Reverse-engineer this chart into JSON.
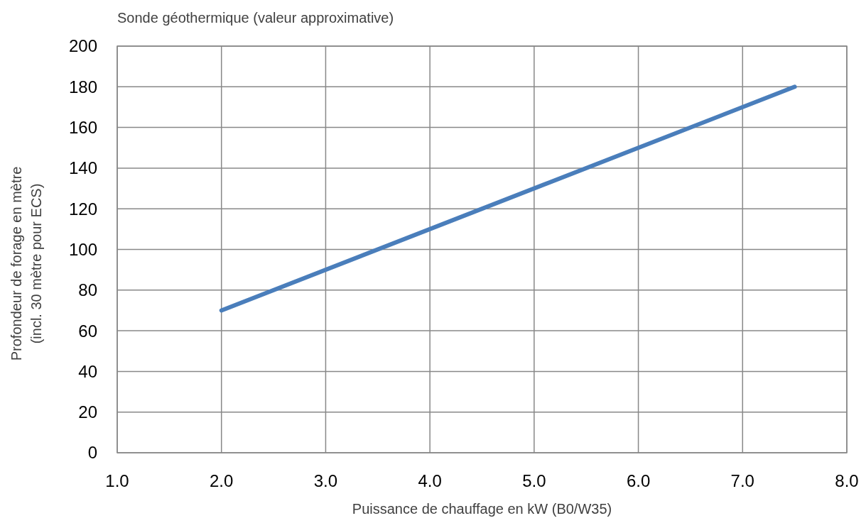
{
  "chart_data": {
    "type": "line",
    "title": "Sonde géothermique (valeur approximative)",
    "xlabel": "Puissance de chauffage en kW (B0/W35)",
    "ylabel": "Profondeur de forage en mètre\n(incl. 30 mètre pour ECS)",
    "x": [
      2.0,
      7.5
    ],
    "series": [
      {
        "color": "#4a7ebb",
        "values": [
          70,
          180
        ]
      }
    ],
    "xlim": [
      1,
      8
    ],
    "xticks": [
      {
        "value": 1,
        "label": "1.0"
      },
      {
        "value": 2,
        "label": "2.0"
      },
      {
        "value": 3,
        "label": "3.0"
      },
      {
        "value": 4,
        "label": "4.0"
      },
      {
        "value": 5,
        "label": "5.0"
      },
      {
        "value": 6,
        "label": "6.0"
      },
      {
        "value": 7,
        "label": "7.0"
      },
      {
        "value": 8,
        "label": "8.0"
      }
    ],
    "ylim": [
      0,
      200
    ],
    "yticks": [
      0,
      20,
      40,
      60,
      80,
      100,
      120,
      140,
      160,
      180,
      200
    ],
    "grid": true,
    "marker": "none",
    "line_style": "solid"
  }
}
